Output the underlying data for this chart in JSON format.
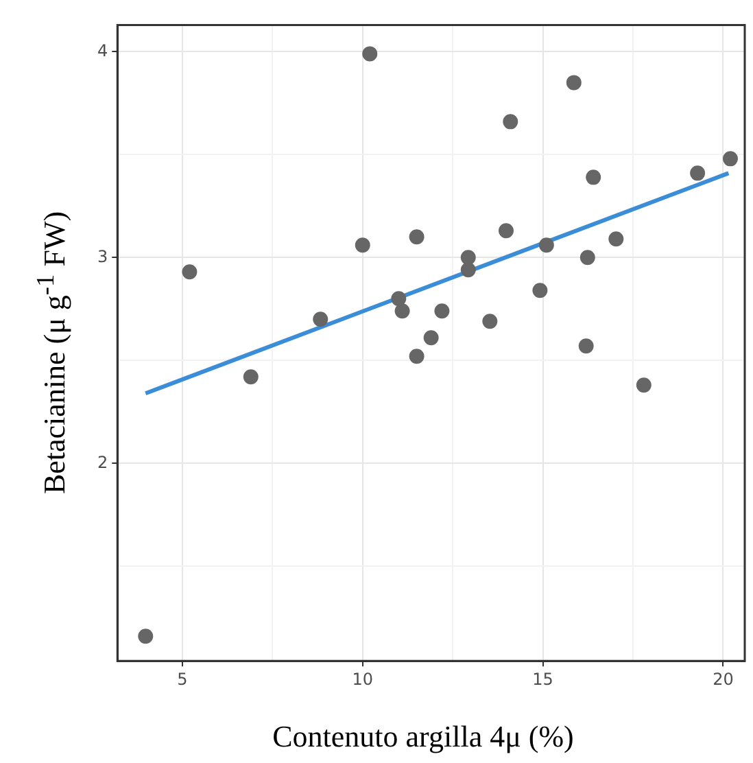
{
  "chart_data": {
    "type": "scatter",
    "xlabel": "Contenuto argilla 4μ (%)",
    "ylabel": "Betacianine (μ g$^{-1}$ FW)",
    "xlim": [
      3.2,
      20.6
    ],
    "ylim": [
      1.04,
      4.13
    ],
    "xticks": [
      5,
      {
        "value": 7.5,
        "label": null
      },
      10,
      {
        "value": 12.5,
        "label": null
      },
      15,
      {
        "value": 17.5,
        "label": null
      },
      20
    ],
    "yticks": [
      {
        "value": 1.5,
        "label": null
      },
      2,
      {
        "value": 2.5,
        "label": null
      },
      3,
      {
        "value": 3.5,
        "label": null
      },
      4
    ],
    "grid": true,
    "legend": false,
    "marker": "circle",
    "series": [
      {
        "type": "scatter",
        "color": "#666666",
        "x": [
          3.98,
          5.2,
          6.9,
          8.83,
          10.0,
          10.2,
          11.0,
          11.1,
          11.5,
          11.5,
          11.9,
          12.2,
          12.93,
          12.93,
          13.53,
          13.98,
          14.1,
          14.92,
          15.1,
          15.86,
          16.2,
          16.24,
          16.4,
          17.03,
          17.8,
          19.29,
          20.2
        ],
        "values": [
          1.16,
          2.93,
          2.42,
          2.7,
          3.06,
          3.99,
          2.8,
          2.74,
          3.1,
          2.52,
          2.61,
          2.74,
          3.0,
          2.94,
          2.69,
          3.13,
          3.66,
          2.84,
          3.06,
          3.85,
          2.57,
          3.0,
          3.39,
          3.09,
          2.38,
          3.41,
          3.48
        ]
      },
      {
        "type": "line",
        "color": "#3a8dd6",
        "x": [
          3.98,
          20.15
        ],
        "values": [
          2.34,
          3.41
        ],
        "marker": "none",
        "line_style": "solid"
      }
    ]
  }
}
